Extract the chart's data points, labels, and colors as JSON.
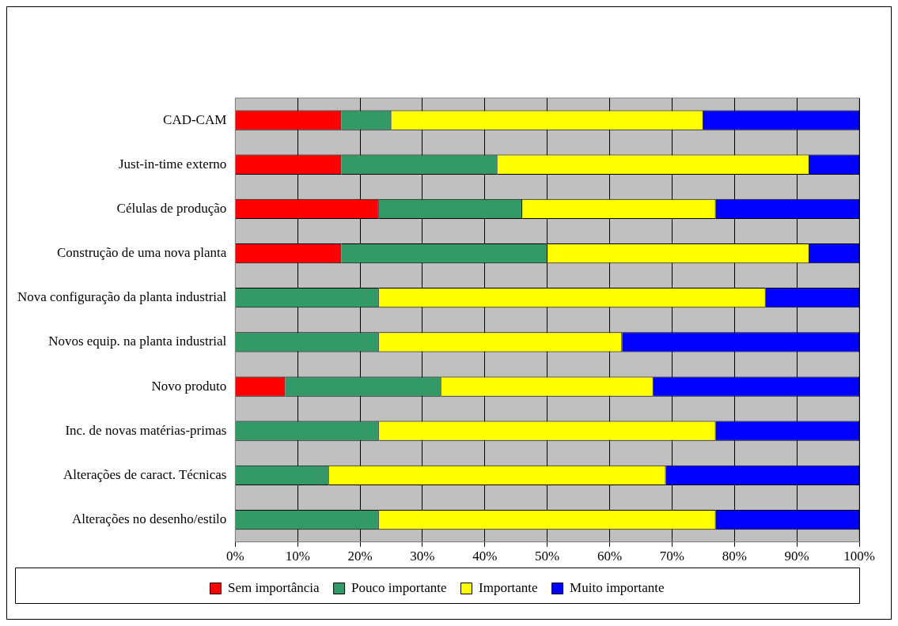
{
  "chart_data": {
    "type": "bar",
    "orientation": "horizontal",
    "stacked": true,
    "grid": "x",
    "legend": "bottom",
    "categories": [
      "CAD-CAM",
      "Just-in-time externo",
      "Células de produção",
      "Construção de uma nova planta",
      "Nova configuração da planta industrial",
      "Novos equip. na planta industrial",
      "Novo produto",
      "Inc. de novas matérias-primas",
      "Alterações de caract. Técnicas",
      "Alterações no desenho/estilo"
    ],
    "xlim": [
      0,
      100
    ],
    "xticks": [
      {
        "value": 0,
        "label": "0%"
      },
      {
        "value": 10,
        "label": "10%"
      },
      {
        "value": 20,
        "label": "20%"
      },
      {
        "value": 30,
        "label": "30%"
      },
      {
        "value": 40,
        "label": "40%"
      },
      {
        "value": 50,
        "label": "50%"
      },
      {
        "value": 60,
        "label": "60%"
      },
      {
        "value": 70,
        "label": "70%"
      },
      {
        "value": 80,
        "label": "80%"
      },
      {
        "value": 90,
        "label": "90%"
      },
      {
        "value": 100,
        "label": "100%"
      }
    ],
    "series": [
      {
        "name": "Sem importância",
        "color": "#ff0000",
        "values": [
          17,
          17,
          23,
          17,
          0,
          0,
          8,
          0,
          0,
          0
        ]
      },
      {
        "name": "Pouco importante",
        "color": "#339966",
        "values": [
          8,
          25,
          23,
          33,
          23,
          23,
          25,
          23,
          15,
          23
        ]
      },
      {
        "name": "Importante",
        "color": "#ffff00",
        "values": [
          50,
          50,
          31,
          42,
          62,
          39,
          34,
          54,
          54,
          54
        ]
      },
      {
        "name": "Muito importante",
        "color": "#0000ff",
        "values": [
          25,
          8,
          23,
          8,
          15,
          38,
          33,
          23,
          31,
          23
        ]
      }
    ]
  }
}
